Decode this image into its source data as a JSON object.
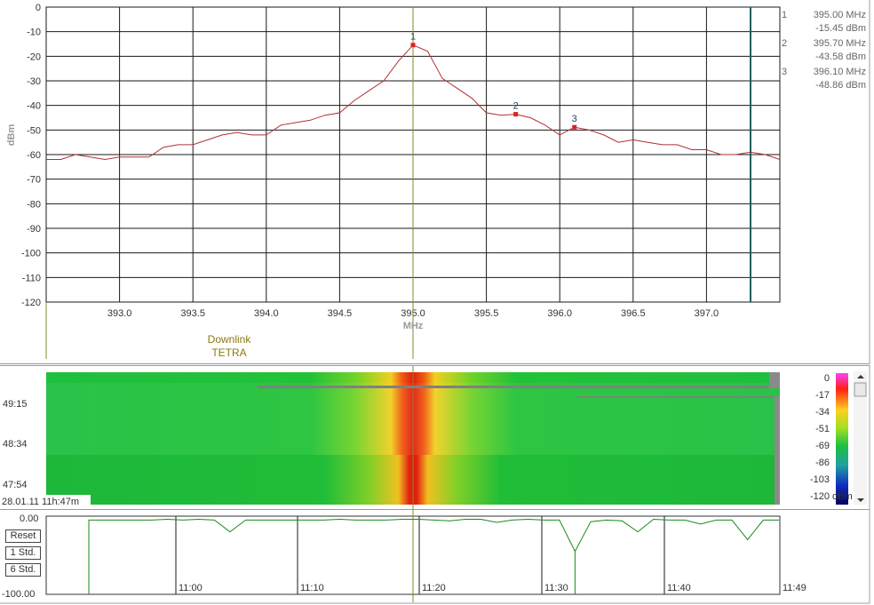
{
  "spectrum": {
    "y_axis_label": "dBm",
    "x_unit": "MHz",
    "y_ticks": [
      "0",
      "-10",
      "-20",
      "-30",
      "-40",
      "-50",
      "-60",
      "-70",
      "-80",
      "-90",
      "-100",
      "-110",
      "-120"
    ],
    "x_ticks": [
      "393.0",
      "393.5",
      "394.0",
      "394.5",
      "395.0",
      "395.5",
      "396.0",
      "396.5",
      "397.0"
    ],
    "channel_label_line1": "Downlink",
    "channel_label_line2": "TETRA",
    "markers": [
      {
        "id": "1",
        "freq": "395.00 MHz",
        "level": "-15.45 dBm"
      },
      {
        "id": "2",
        "freq": "395.70 MHz",
        "level": "-43.58 dBm"
      },
      {
        "id": "3",
        "freq": "396.10 MHz",
        "level": "-48.86 dBm"
      }
    ],
    "colors": {
      "trace": "#b03030",
      "grid": "#1a1a1a",
      "center_line": "#8a8a20",
      "limit_line": "#1f5f5f",
      "marker": "#e02020"
    }
  },
  "waterfall": {
    "time_labels": [
      "49:15",
      "48:34",
      "47:54"
    ],
    "timestamp": "28.01.11 11h:47m",
    "scale_ticks": [
      "0",
      "-17",
      "-34",
      "-51",
      "-69",
      "-86",
      "-103",
      "-120"
    ],
    "scale_unit": "dBm"
  },
  "history": {
    "top_label": "0.00",
    "bottom_label": "-100.00",
    "buttons": {
      "reset": "Reset",
      "std1": "1 Std.",
      "std6": "6 Std."
    },
    "time_ticks": [
      "11:00",
      "11:10",
      "11:20",
      "11:30",
      "11:40"
    ],
    "end_label": "11:49",
    "colors": {
      "trace": "#1a8a1a"
    }
  },
  "chart_data": [
    {
      "type": "line",
      "xlabel": "MHz",
      "ylabel": "dBm",
      "xlim": [
        392.5,
        397.5
      ],
      "ylim": [
        -120,
        0
      ],
      "x": [
        392.5,
        392.6,
        392.7,
        392.8,
        392.9,
        393.0,
        393.1,
        393.2,
        393.3,
        393.4,
        393.5,
        393.6,
        393.7,
        393.8,
        393.9,
        394.0,
        394.1,
        394.2,
        394.3,
        394.4,
        394.5,
        394.6,
        394.7,
        394.8,
        394.9,
        395.0,
        395.1,
        395.2,
        395.3,
        395.4,
        395.5,
        395.6,
        395.7,
        395.8,
        395.9,
        396.0,
        396.1,
        396.2,
        396.3,
        396.4,
        396.5,
        396.6,
        396.7,
        396.8,
        396.9,
        397.0,
        397.1,
        397.2,
        397.3,
        397.4,
        397.5
      ],
      "series": [
        {
          "values": [
            -62,
            -62,
            -60,
            -61,
            -62,
            -61,
            -61,
            -61,
            -57,
            -56,
            -56,
            -54,
            -52,
            -51,
            -52,
            -52,
            -48,
            -47,
            -46,
            -44,
            -43,
            -38,
            -34,
            -30,
            -22,
            -15.45,
            -18,
            -29,
            -33,
            -37,
            -43,
            -44,
            -43.58,
            -45,
            -48,
            -52,
            -48.86,
            -50,
            -52,
            -55,
            -54,
            -55,
            -56,
            -56,
            -58,
            -58,
            -60,
            -60,
            -59,
            -60,
            -62
          ]
        }
      ],
      "markers": [
        {
          "x": 395.0,
          "y": -15.45
        },
        {
          "x": 395.7,
          "y": -43.58
        },
        {
          "x": 396.1,
          "y": -48.86
        }
      ]
    },
    {
      "type": "line",
      "ylim": [
        -100,
        0
      ],
      "x_ticks": [
        "11:00",
        "11:10",
        "11:20",
        "11:30",
        "11:40",
        "11:49"
      ],
      "series": [
        {
          "values": [
            -5,
            -5,
            -5,
            -5,
            -5,
            -4,
            -5,
            -4,
            -5,
            -20,
            -5,
            -5,
            -5,
            -5,
            -5,
            -5,
            -4,
            -5,
            -5,
            -5,
            -4,
            -4,
            -5,
            -6,
            -4,
            -4,
            -8,
            -5,
            -4,
            -5,
            -5,
            -45,
            -7,
            -5,
            -6,
            -20,
            -4,
            -5,
            -5,
            -10,
            -5,
            -5,
            -30,
            -5,
            -5
          ]
        }
      ]
    }
  ]
}
